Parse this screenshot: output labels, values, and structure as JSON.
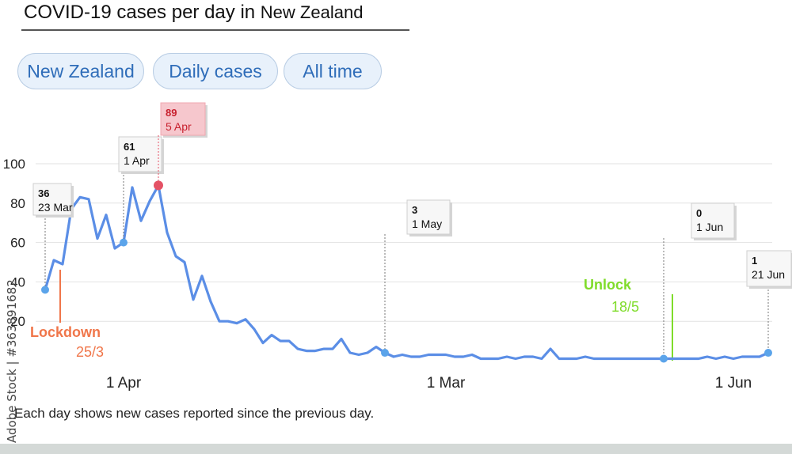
{
  "header": {
    "title_main": "COVID-19 cases per day in",
    "title_location": "New Zealand"
  },
  "filters": {
    "location": "New Zealand",
    "metric": "Daily cases",
    "range": "All time"
  },
  "footnote": "Each day shows new cases reported since the previous day.",
  "watermark": "Adobe Stock | #363891682",
  "colors": {
    "line": "#5b8ee6",
    "point": "#5ba4ea",
    "peak": "#e45265",
    "lockdown": "#f0764a",
    "unlock": "#7fdc2a",
    "grid": "#e2e2e2",
    "callout_bg": "#f7f7f7",
    "peak_callout_bg": "#f6c7cd"
  },
  "chart_data": {
    "type": "line",
    "y_ticks": [
      20,
      40,
      60,
      80,
      100
    ],
    "ylim": [
      0,
      100
    ],
    "grid": true,
    "x_ticks": [
      "1 Apr",
      "1 Mar",
      "1 Jun"
    ],
    "series": [
      {
        "values": [
          36,
          51,
          49,
          77,
          83,
          82,
          62,
          74,
          57,
          60,
          88,
          71,
          81,
          89,
          65,
          53,
          50,
          31,
          43,
          30,
          20,
          20,
          19,
          21,
          16,
          9,
          13,
          10,
          10,
          6,
          5,
          5,
          6,
          6,
          11,
          4,
          3,
          4,
          7,
          4,
          2,
          3,
          2,
          2,
          3,
          3,
          3,
          2,
          2,
          3,
          1,
          1,
          1,
          2,
          1,
          2,
          2,
          1,
          6,
          1,
          1,
          1,
          2,
          1,
          1,
          1,
          1,
          1,
          1,
          1,
          1,
          1,
          1,
          1,
          1,
          1,
          2,
          1,
          2,
          1,
          2,
          2,
          2,
          4
        ]
      }
    ],
    "callouts": [
      {
        "value": "36",
        "date": "23 Mar"
      },
      {
        "value": "61",
        "date": "1 Apr"
      },
      {
        "value": "89",
        "date": "5 Apr"
      },
      {
        "value": "3",
        "date": "1 May"
      },
      {
        "value": "0",
        "date": "1 Jun"
      },
      {
        "value": "1",
        "date": "21 Jun"
      }
    ],
    "events": [
      {
        "label": "Lockdown",
        "date": "25/3"
      },
      {
        "label": "Unlock",
        "date": "18/5"
      }
    ]
  }
}
